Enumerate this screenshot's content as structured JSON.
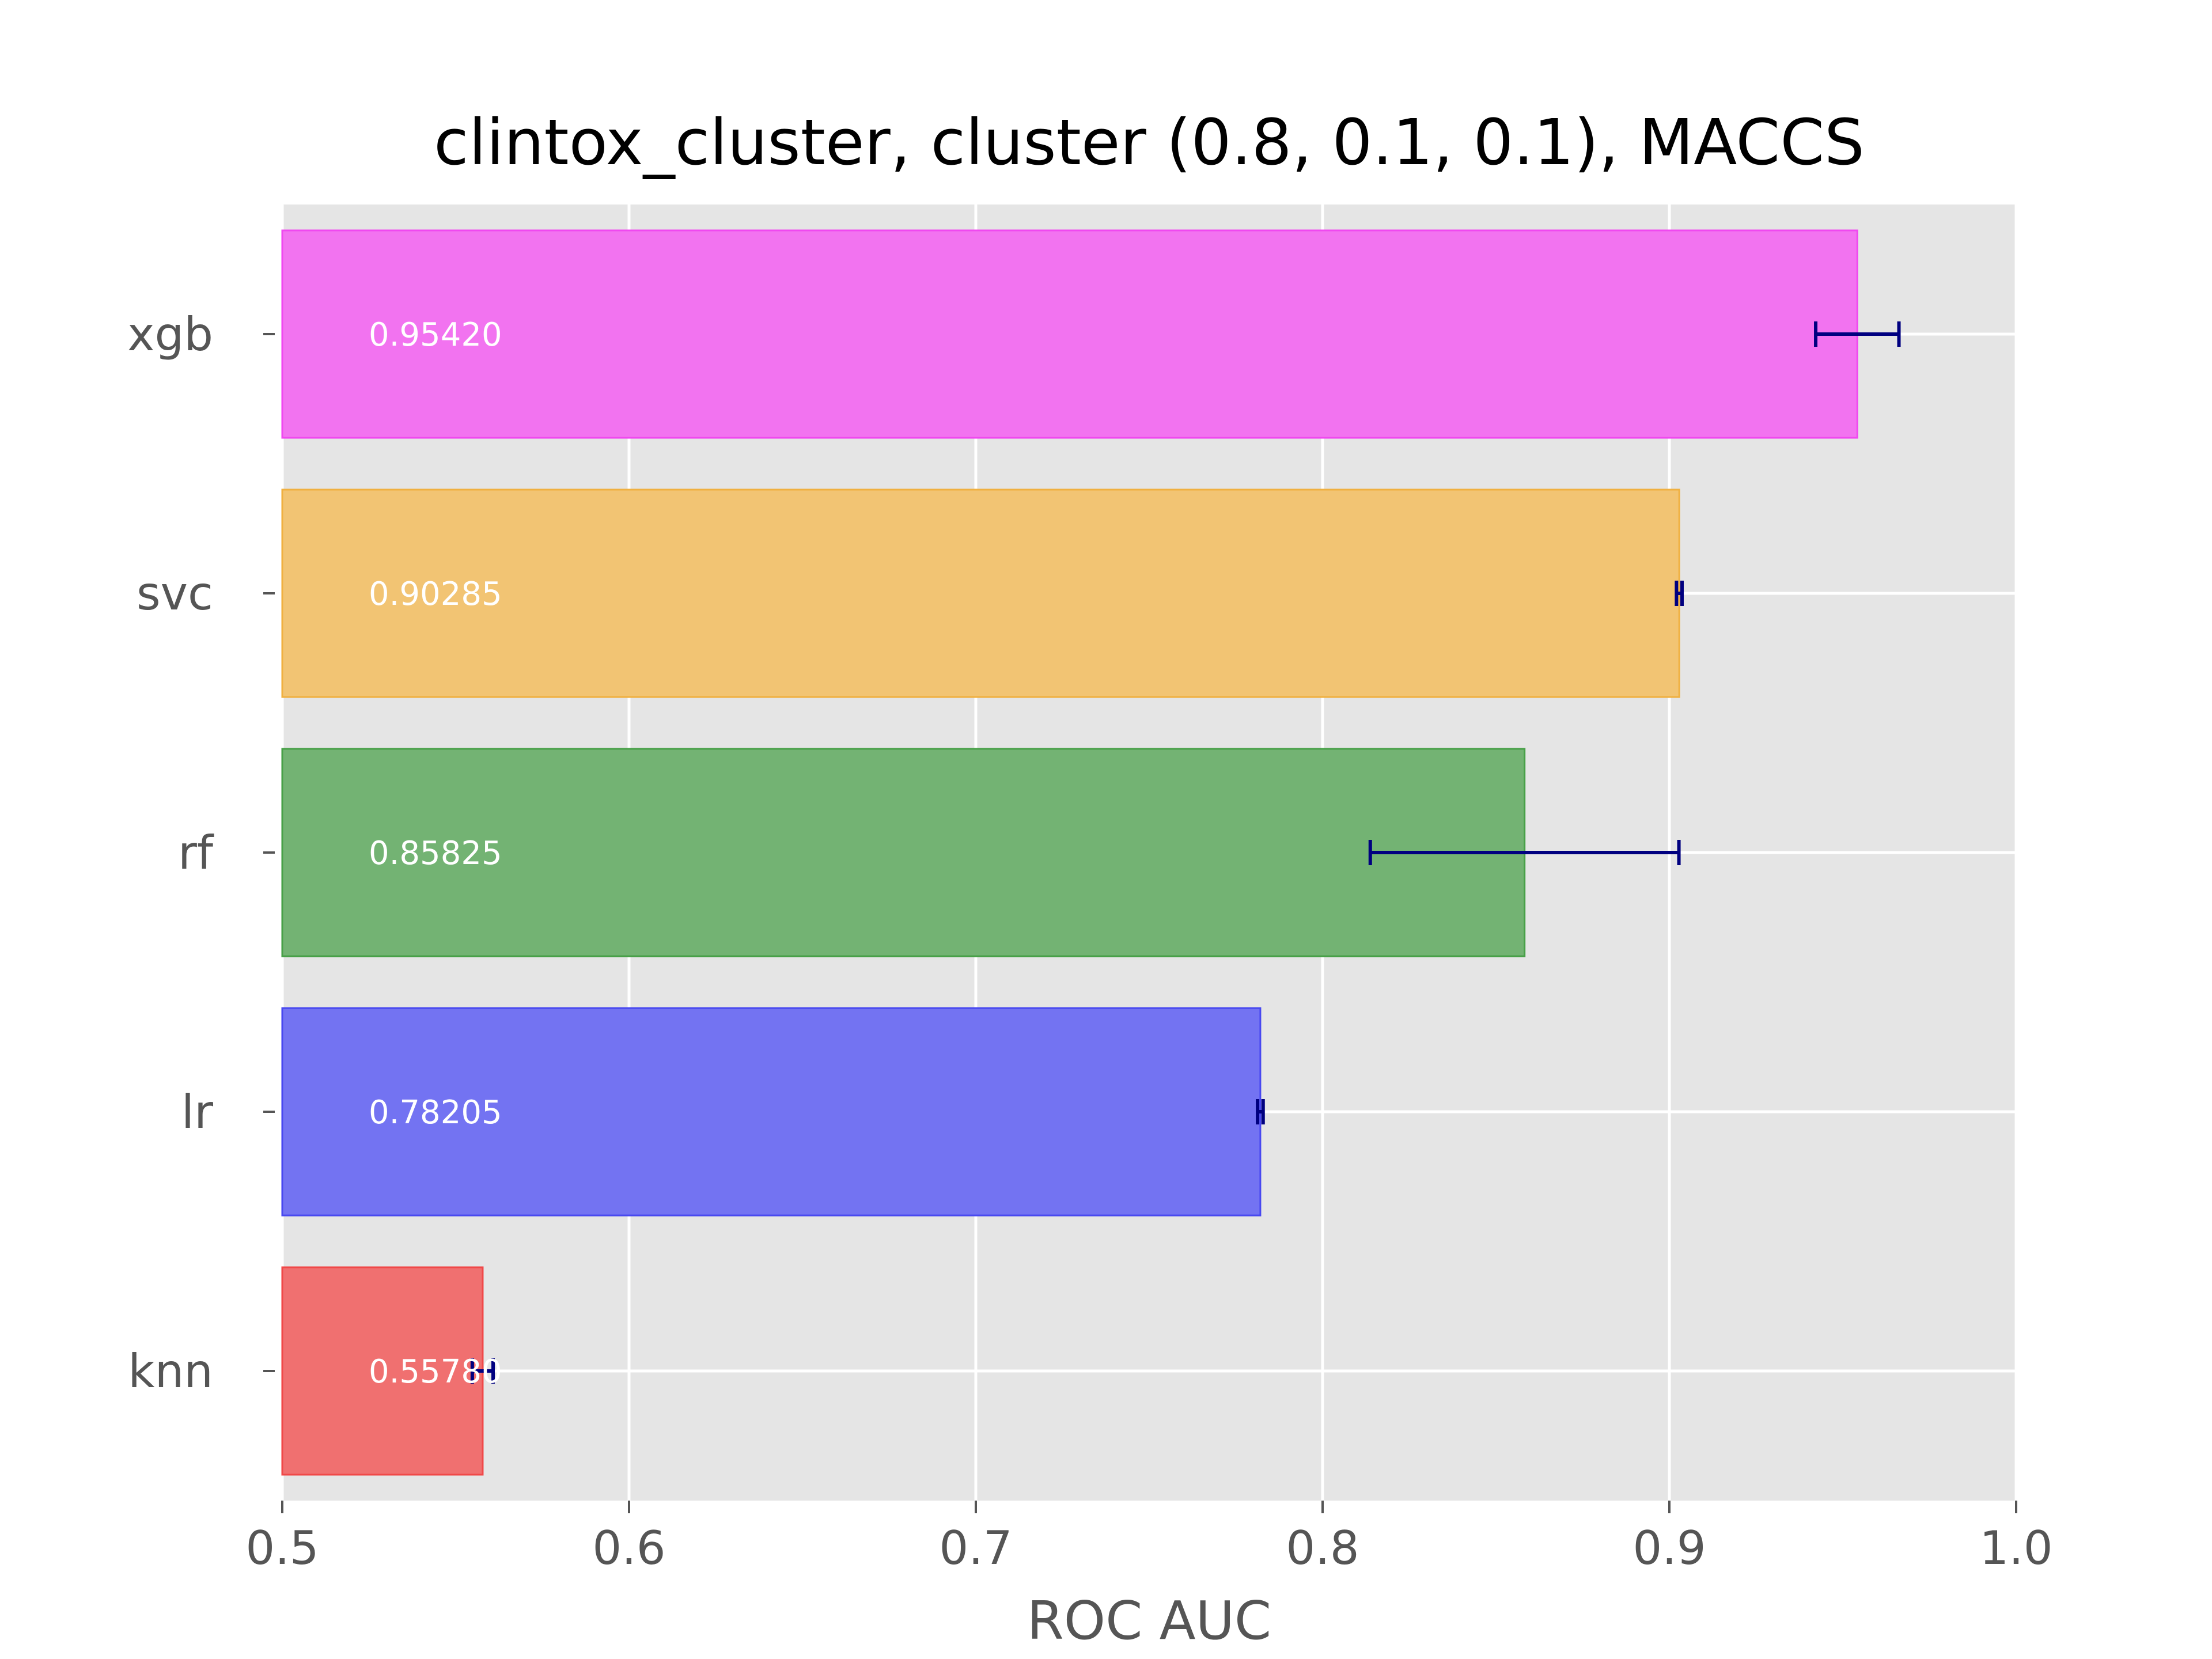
{
  "chart_data": {
    "type": "bar",
    "orientation": "horizontal",
    "title": "clintox_cluster, cluster (0.8, 0.1, 0.1), MACCS",
    "xlabel": "ROC AUC",
    "ylabel": "",
    "xlim": [
      0.5,
      1.0
    ],
    "xticks": [
      "0.5",
      "0.6",
      "0.7",
      "0.8",
      "0.9",
      "1.0"
    ],
    "grid": true,
    "categories": [
      "knn",
      "lr",
      "rf",
      "svc",
      "xgb"
    ],
    "values": [
      0.5578,
      0.78205,
      0.85825,
      0.90285,
      0.9542
    ],
    "labels": [
      "0.55780",
      "0.78205",
      "0.85825",
      "0.90285",
      "0.95420"
    ],
    "errors": [
      0.003,
      0.0008,
      0.0445,
      0.0008,
      0.012
    ],
    "colors": [
      "#f07070",
      "#7373f2",
      "#73b373",
      "#f2c473",
      "#f273f0"
    ],
    "edge_colors": [
      "#f04848",
      "#4848f0",
      "#48a048",
      "#f0b040",
      "#f048f0"
    ],
    "error_color": "#000080"
  }
}
